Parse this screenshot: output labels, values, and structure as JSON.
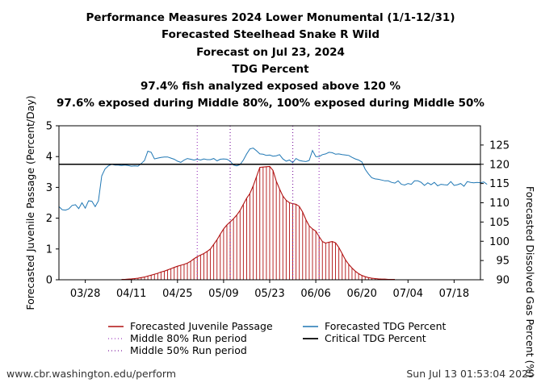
{
  "titles": {
    "line1": "Performance Measures 2024 Lower Monumental (1/1-12/31)",
    "line2": "Forecasted Steelhead Snake R Wild",
    "line3": "Forecast on Jul 23, 2024",
    "line4": "TDG Percent",
    "line5": "97.4% fish analyzed exposed above 120 %",
    "line6": "97.6% exposed during Middle 80%, 100% exposed during Middle 50%"
  },
  "footer": {
    "left": "www.cbr.washington.edu/perform",
    "right": "Sun Jul 13 01:53:04 2025"
  },
  "colors": {
    "passage": "#b01010",
    "tdg": "#1f77b4",
    "critical": "#000000",
    "middle80": "#a040c0",
    "middle50": "#8020a0"
  },
  "chart_data": {
    "type": "line",
    "x_start": "2024-03-20",
    "x_end": "2024-07-26",
    "ylabel": "Forecasted Juvenile Passage (Percent/Day)",
    "ylabel_right": "Forecasted Dissolved Gas Percent (%)",
    "ylim": [
      0,
      5
    ],
    "ylim_right": [
      90,
      130
    ],
    "yticks": [
      "0",
      "1",
      "2",
      "3",
      "4",
      "5"
    ],
    "yticks_right": [
      "90",
      "95",
      "100",
      "105",
      "110",
      "115",
      "120",
      "125"
    ],
    "xticks": [
      {
        "label": "03/28",
        "date": "2024-03-28"
      },
      {
        "label": "04/11",
        "date": "2024-04-11"
      },
      {
        "label": "04/25",
        "date": "2024-04-25"
      },
      {
        "label": "05/09",
        "date": "2024-05-09"
      },
      {
        "label": "05/23",
        "date": "2024-05-23"
      },
      {
        "label": "06/06",
        "date": "2024-06-06"
      },
      {
        "label": "06/20",
        "date": "2024-06-20"
      },
      {
        "label": "07/04",
        "date": "2024-07-04"
      },
      {
        "label": "07/18",
        "date": "2024-07-18"
      }
    ],
    "critical_tdg": 120,
    "middle80_dates": [
      "2024-05-01",
      "2024-06-07"
    ],
    "middle50_dates": [
      "2024-05-11",
      "2024-05-30"
    ],
    "passage_series": {
      "name": "Forecasted Juvenile Passage",
      "start": "2024-04-08",
      "values": [
        0.01,
        0.01,
        0.02,
        0.03,
        0.04,
        0.05,
        0.07,
        0.09,
        0.12,
        0.15,
        0.18,
        0.21,
        0.25,
        0.28,
        0.32,
        0.36,
        0.4,
        0.44,
        0.47,
        0.5,
        0.54,
        0.6,
        0.68,
        0.75,
        0.8,
        0.85,
        0.92,
        1.0,
        1.15,
        1.3,
        1.48,
        1.65,
        1.78,
        1.88,
        1.98,
        2.1,
        2.25,
        2.45,
        2.65,
        2.8,
        3.05,
        3.35,
        3.65,
        3.66,
        3.67,
        3.68,
        3.55,
        3.2,
        2.95,
        2.72,
        2.58,
        2.5,
        2.47,
        2.45,
        2.38,
        2.2,
        1.95,
        1.75,
        1.65,
        1.58,
        1.4,
        1.24,
        1.19,
        1.22,
        1.24,
        1.2,
        1.05,
        0.85,
        0.65,
        0.5,
        0.38,
        0.28,
        0.2,
        0.14,
        0.1,
        0.07,
        0.05,
        0.04,
        0.03,
        0.02,
        0.02,
        0.01,
        0.01,
        0.01
      ]
    },
    "tdg_series": {
      "name": "Forecasted TDG Percent",
      "start": "2024-03-20",
      "values": [
        109,
        108.2,
        108.1,
        108.4,
        109.3,
        109.5,
        108.5,
        110,
        108.6,
        110.5,
        110.4,
        109,
        110.5,
        117,
        118.8,
        119.6,
        120,
        119.8,
        119.8,
        119.7,
        119.8,
        119.7,
        119.5,
        119.6,
        119.5,
        120.2,
        121,
        123.4,
        123.1,
        121.4,
        121.6,
        121.8,
        121.9,
        121.9,
        121.6,
        121.3,
        120.8,
        120.5,
        121.1,
        121.5,
        121.3,
        121.1,
        121.3,
        121.1,
        121.4,
        121.2,
        121.2,
        121.5,
        120.9,
        121.3,
        121.4,
        121.3,
        120.8,
        119.8,
        119.6,
        119.9,
        121.1,
        122.7,
        124,
        124.2,
        123.5,
        122.7,
        122.6,
        122.3,
        122.4,
        122.1,
        122.2,
        122.5,
        121.4,
        120.8,
        121.1,
        120.4,
        121.5,
        121,
        120.8,
        120.7,
        121,
        123.6,
        122,
        122,
        122.5,
        122.7,
        123.1,
        123,
        122.6,
        122.7,
        122.5,
        122.4,
        122.3,
        121.8,
        121.4,
        121.1,
        120.6,
        118.7,
        117.5,
        116.5,
        116.2,
        116.1,
        115.9,
        115.7,
        115.7,
        115.3,
        115.1,
        115.7,
        114.8,
        114.6,
        115,
        114.8,
        115.7,
        115.7,
        115.3,
        114.5,
        115.2,
        114.7,
        115.3,
        114.4,
        114.8,
        114.7,
        114.6,
        115.5,
        114.5,
        114.7,
        115,
        114.3,
        115.5,
        115.3,
        115.2,
        115.3,
        115.2,
        115.4,
        114.8
      ]
    },
    "legend": {
      "passage": "Forecasted Juvenile Passage",
      "middle80": "Middle 80% Run period",
      "middle50": "Middle 50% Run period",
      "tdg": "Forecasted TDG Percent",
      "critical": "Critical TDG Percent"
    }
  }
}
